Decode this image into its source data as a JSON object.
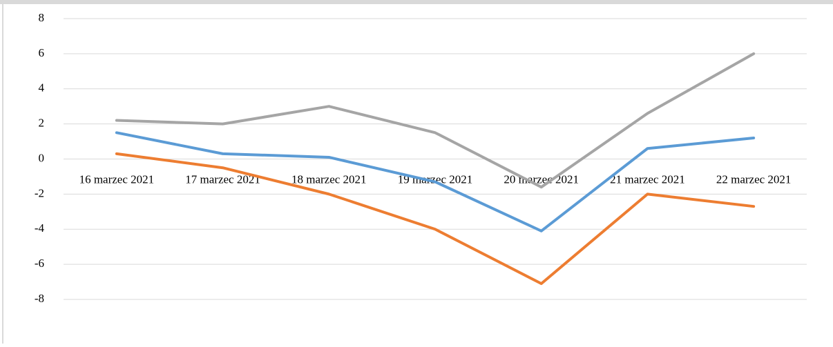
{
  "chart_data": {
    "type": "line",
    "categories": [
      "16 marzec 2021",
      "17 marzec 2021",
      "18 marzec 2021",
      "19 marzec 2021",
      "20 marzec 2021",
      "21 marzec 2021",
      "22 marzec 2021"
    ],
    "series": [
      {
        "color": "#a5a5a5",
        "values": [
          2.2,
          2.0,
          3.0,
          1.5,
          -1.6,
          2.6,
          6.0
        ]
      },
      {
        "color": "#5b9bd5",
        "values": [
          1.5,
          0.3,
          0.1,
          -1.3,
          -4.1,
          0.6,
          1.2
        ]
      },
      {
        "color": "#ed7d31",
        "values": [
          0.3,
          -0.5,
          -2.0,
          -4.0,
          -7.1,
          -2.0,
          -2.7
        ]
      }
    ],
    "ylim": [
      -8,
      8
    ],
    "yticks": [
      -8,
      -6,
      -4,
      -2,
      0,
      2,
      4,
      6,
      8
    ],
    "grid": true
  }
}
